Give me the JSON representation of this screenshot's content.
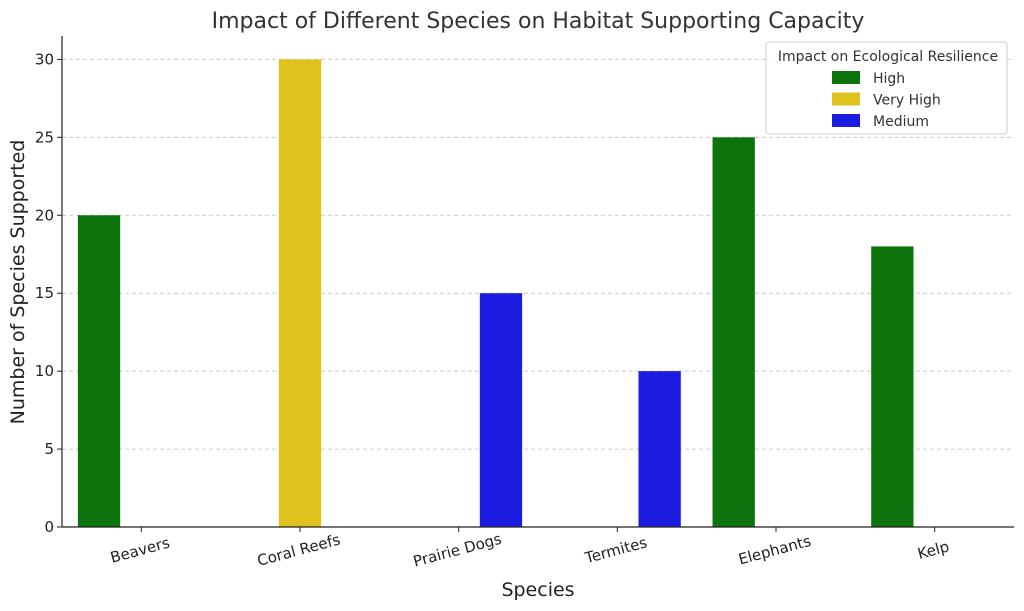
{
  "chart_data": {
    "type": "bar",
    "title": "Impact of Different Species on Habitat Supporting Capacity",
    "xlabel": "Species",
    "ylabel": "Number of Species Supported",
    "categories": [
      "Beavers",
      "Coral Reefs",
      "Prairie Dogs",
      "Termites",
      "Elephants",
      "Kelp"
    ],
    "ylim": [
      0,
      31.5
    ],
    "yticks": [
      0,
      5,
      10,
      15,
      20,
      25,
      30
    ],
    "grid": true,
    "hue_order": [
      "High",
      "Very High",
      "Medium"
    ],
    "legend": {
      "title": "Impact on Ecological Resilience",
      "placement": "top-right"
    },
    "series": [
      {
        "name": "High",
        "color": "#0d730d",
        "values": [
          20,
          null,
          null,
          null,
          25,
          18
        ]
      },
      {
        "name": "Very High",
        "color": "#e0c21e",
        "values": [
          null,
          30,
          null,
          null,
          null,
          null
        ]
      },
      {
        "name": "Medium",
        "color": "#1c1ce0",
        "values": [
          null,
          null,
          15,
          10,
          null,
          null
        ]
      }
    ]
  }
}
